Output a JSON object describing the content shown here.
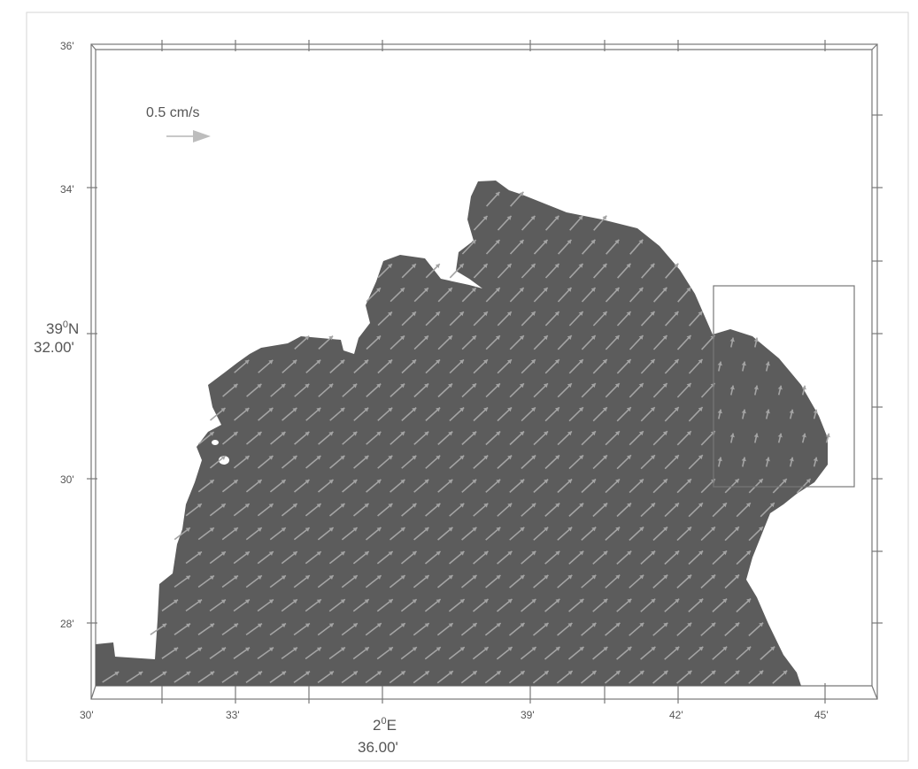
{
  "map": {
    "scale_label": "0.5 cm/s",
    "lat_main_degree": "39",
    "lat_main_sup": "0",
    "lat_main_hemi": "N",
    "lat_main_minutes": "32.00'",
    "lon_main_degree": "2",
    "lon_main_sup": "0",
    "lon_main_hemi": "E",
    "lon_main_minutes": "36.00'",
    "lat_ticks": [
      "36'",
      "34'",
      "30'",
      "28'"
    ],
    "lon_ticks": [
      "30'",
      "33'",
      "39'",
      "42'",
      "45'"
    ],
    "colors": {
      "water": "#5c5c5c",
      "arrow": "#a4a4a4",
      "frame": "#777777",
      "scale_arrow": "#bdbdbd"
    }
  }
}
